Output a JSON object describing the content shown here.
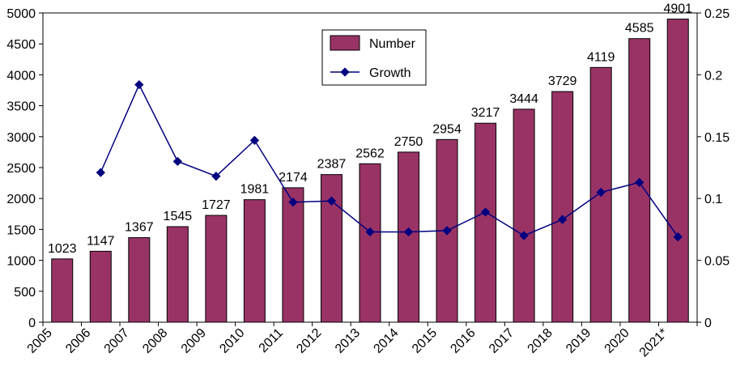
{
  "chart_data": {
    "type": "bar",
    "categories": [
      "2005",
      "2006",
      "2007",
      "2008",
      "2009",
      "2010",
      "2011",
      "2012",
      "2013",
      "2014",
      "2015",
      "2016",
      "2017",
      "2018",
      "2019",
      "2020",
      "2021*"
    ],
    "series": [
      {
        "name": "Number",
        "axis": "left",
        "type": "bar",
        "color": "#993366",
        "values": [
          1023,
          1147,
          1367,
          1545,
          1727,
          1981,
          2174,
          2387,
          2562,
          2750,
          2954,
          3217,
          3444,
          3729,
          4119,
          4585,
          4901
        ],
        "data_labels": [
          "1023",
          "1147",
          "1367",
          "1545",
          "1727",
          "1981",
          "2174",
          "2387",
          "2562",
          "2750",
          "2954",
          "3217",
          "3444",
          "3729",
          "4119",
          "4585",
          "4901"
        ]
      },
      {
        "name": "Growth",
        "axis": "right",
        "type": "line",
        "color": "#000080",
        "values": [
          null,
          0.121,
          0.192,
          0.13,
          0.118,
          0.147,
          0.097,
          0.098,
          0.073,
          0.073,
          0.074,
          0.089,
          0.07,
          0.083,
          0.105,
          0.113,
          0.069
        ]
      }
    ],
    "ylim": [
      0,
      5000
    ],
    "y2lim": [
      0,
      0.25
    ],
    "yticks": [
      "0",
      "500",
      "1000",
      "1500",
      "2000",
      "2500",
      "3000",
      "3500",
      "4000",
      "4500",
      "5000"
    ],
    "y2ticks": [
      "0",
      "0.05",
      "0.1",
      "0.15",
      "0.2",
      "0.25"
    ],
    "legend": {
      "placement": "top-center",
      "entries": [
        "Number",
        "Growth"
      ]
    },
    "grid": false
  }
}
